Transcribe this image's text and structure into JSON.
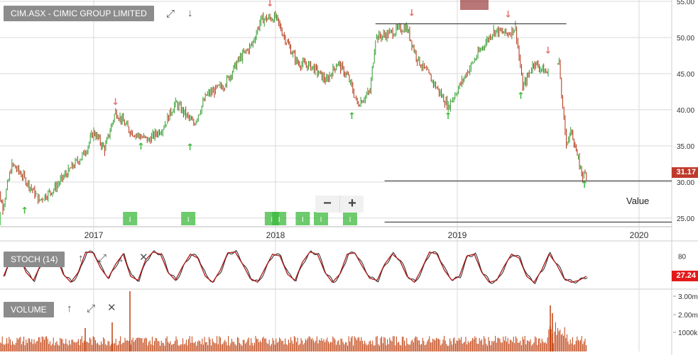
{
  "panels": {
    "price_label": "CIM.ASX - CIMIC GROUP LIMITED",
    "stoch_label": "STOCH (14)",
    "volume_label": "VOLUME"
  },
  "annotations": {
    "value_text": "Value"
  },
  "price_badge": "31.17",
  "stoch_badge": "27.24",
  "colors": {
    "up": "#2e9d2e",
    "down": "#b03010",
    "signal_up": "#3cba3c",
    "signal_down": "#e57373",
    "grid": "#d9d9d9",
    "volume": "#c0400f",
    "stoch_main": "#b01818",
    "stoch_signal": "#222222"
  },
  "icons": [
    "expand-icon",
    "arrow-down-icon",
    "arrow-up-icon",
    "close-icon",
    "zoom-out-icon",
    "zoom-in-icon"
  ],
  "chart_data": {
    "type": "line",
    "title": "CIM.ASX - CIMIC GROUP LIMITED",
    "x_tick_labels": [
      "2017",
      "2018",
      "2019",
      "2020"
    ],
    "price_axis": {
      "range": [
        24,
        55
      ],
      "ticks": [
        "25.00",
        "30.00",
        "35.00",
        "40.00",
        "45.00",
        "50.00",
        "55.00"
      ]
    },
    "stoch_axis": {
      "ticks": [
        "80"
      ]
    },
    "volume_axis": {
      "ticks": [
        "1000k",
        "2.00m",
        "3.00m"
      ]
    },
    "last_price": 31.17,
    "last_stoch": 27.24,
    "price_series": {
      "name": "CIM.ASX",
      "points": [
        [
          2016.45,
          31.0
        ],
        [
          2016.5,
          26.5
        ],
        [
          2016.55,
          32.5
        ],
        [
          2016.62,
          30.5
        ],
        [
          2016.7,
          27.5
        ],
        [
          2016.78,
          29.0
        ],
        [
          2016.86,
          31.5
        ],
        [
          2016.95,
          34.0
        ],
        [
          2017.0,
          37.0
        ],
        [
          2017.06,
          34.5
        ],
        [
          2017.12,
          39.8
        ],
        [
          2017.2,
          37.0
        ],
        [
          2017.3,
          35.8
        ],
        [
          2017.38,
          37.5
        ],
        [
          2017.45,
          41.0
        ],
        [
          2017.55,
          38.0
        ],
        [
          2017.62,
          42.0
        ],
        [
          2017.72,
          43.5
        ],
        [
          2017.8,
          47.0
        ],
        [
          2017.87,
          49.0
        ],
        [
          2017.92,
          52.5
        ],
        [
          2018.0,
          52.8
        ],
        [
          2018.06,
          49.5
        ],
        [
          2018.12,
          46.5
        ],
        [
          2018.2,
          46.0
        ],
        [
          2018.28,
          44.0
        ],
        [
          2018.34,
          46.5
        ],
        [
          2018.4,
          44.5
        ],
        [
          2018.45,
          40.8
        ],
        [
          2018.52,
          42.5
        ],
        [
          2018.55,
          50.0
        ],
        [
          2018.62,
          50.5
        ],
        [
          2018.72,
          51.5
        ],
        [
          2018.78,
          47.0
        ],
        [
          2018.85,
          44.5
        ],
        [
          2018.95,
          40.5
        ],
        [
          2019.05,
          45.0
        ],
        [
          2019.12,
          48.0
        ],
        [
          2019.2,
          51.0
        ],
        [
          2019.28,
          50.5
        ],
        [
          2019.32,
          51.5
        ],
        [
          2019.36,
          43.0
        ],
        [
          2019.42,
          46.5
        ],
        [
          2019.5,
          45.0
        ],
        [
          2019.56,
          46.5
        ],
        [
          2019.58,
          40.0
        ],
        [
          2019.6,
          35.5
        ],
        [
          2019.63,
          37.0
        ],
        [
          2019.66,
          33.5
        ],
        [
          2019.69,
          30.8
        ],
        [
          2019.71,
          31.17
        ]
      ]
    },
    "horizontal_lines": [
      {
        "y": 51.9,
        "x_range": [
          2018.55,
          2019.6
        ]
      },
      {
        "y": 30.15,
        "x_range": [
          2018.6,
          2020.33
        ]
      },
      {
        "y": 24.45,
        "x_range": [
          2018.6,
          2020.33
        ]
      }
    ],
    "signals": {
      "down": [
        [
          2017.12,
          40.7
        ],
        [
          2017.97,
          54.3
        ],
        [
          2018.75,
          53.0
        ],
        [
          2019.28,
          52.8
        ],
        [
          2019.5,
          47.8
        ]
      ],
      "up": [
        [
          2016.46,
          25.1
        ],
        [
          2016.62,
          25.6
        ],
        [
          2017.26,
          34.5
        ],
        [
          2017.53,
          34.4
        ],
        [
          2018.42,
          38.7
        ],
        [
          2018.95,
          38.7
        ],
        [
          2019.35,
          41.5
        ],
        [
          2019.7,
          29.2
        ]
      ]
    },
    "stoch_series": {
      "name": "STOCH (14)",
      "values": [
        30,
        75,
        85,
        40,
        20,
        60,
        85,
        80,
        35,
        15,
        40,
        90,
        88,
        50,
        25,
        60,
        85,
        30,
        20,
        70,
        90,
        85,
        40,
        20,
        55,
        85,
        75,
        30,
        15,
        45,
        88,
        90,
        60,
        25,
        15,
        50,
        85,
        80,
        35,
        20,
        65,
        90,
        85,
        40,
        15,
        35,
        85,
        88,
        55,
        25,
        20,
        60,
        85,
        70,
        30,
        15,
        50,
        90,
        85,
        45,
        20,
        30,
        80,
        85,
        40,
        15,
        20,
        55,
        85,
        75,
        30,
        15,
        45,
        85,
        60,
        25,
        15,
        20,
        30
      ]
    },
    "volume_series": {
      "name": "VOLUME",
      "note": "daily bars, spikes near 2016.85, 2017.15, 2019.6"
    }
  }
}
